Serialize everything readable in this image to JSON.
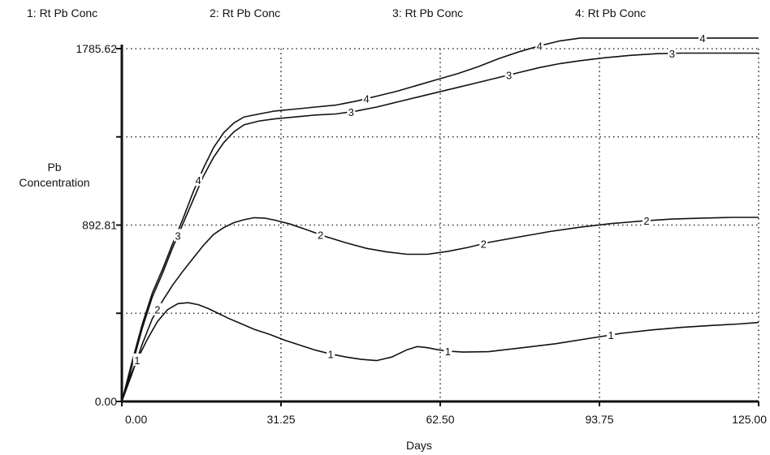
{
  "chart_data": {
    "type": "line",
    "xlabel": "Days",
    "ylabel_lines": [
      "Pb",
      "Concentration"
    ],
    "x_ticks": [
      "0.00",
      "31.25",
      "62.50",
      "93.75",
      "125.00"
    ],
    "y_ticks": [
      "0.00",
      "892.81",
      "1785.62"
    ],
    "xlim": [
      0,
      125
    ],
    "ylim": [
      0,
      1785.62
    ],
    "grid": true,
    "series": [
      {
        "name": "1: Rt Pb Conc",
        "marker": "1",
        "x": [
          0,
          1.5,
          3,
          5,
          7,
          9,
          11,
          13,
          15,
          17,
          19,
          21,
          23,
          26,
          29,
          32,
          35,
          38,
          41,
          44,
          47,
          50,
          53,
          56,
          58,
          60,
          62,
          64,
          67,
          72,
          78,
          85,
          92,
          98,
          104,
          110,
          116,
          121,
          125
        ],
        "y": [
          0,
          120,
          210,
          315,
          405,
          465,
          495,
          500,
          490,
          470,
          445,
          420,
          398,
          365,
          340,
          310,
          285,
          260,
          240,
          225,
          213,
          207,
          225,
          262,
          278,
          272,
          262,
          255,
          250,
          252,
          270,
          292,
          320,
          345,
          362,
          375,
          385,
          392,
          400
        ]
      },
      {
        "name": "2: Rt Pb Conc",
        "marker": "2",
        "x": [
          0,
          2,
          4,
          6,
          8,
          10,
          12,
          14,
          16,
          18,
          20,
          22,
          24,
          26,
          28,
          30,
          33,
          36,
          40,
          44,
          48,
          52,
          56,
          60,
          64,
          68,
          72,
          78,
          84,
          90,
          96,
          102,
          108,
          114,
          120,
          125
        ],
        "y": [
          0,
          140,
          290,
          420,
          510,
          590,
          660,
          725,
          790,
          845,
          880,
          905,
          920,
          930,
          928,
          918,
          898,
          872,
          835,
          803,
          775,
          757,
          745,
          745,
          760,
          780,
          805,
          833,
          860,
          882,
          900,
          913,
          923,
          928,
          932,
          932
        ]
      },
      {
        "name": "3: Rt Pb Conc",
        "marker": "3",
        "x": [
          0,
          2,
          4,
          6,
          8,
          10,
          12,
          14,
          16,
          18,
          20,
          22,
          24,
          27,
          30,
          34,
          38,
          42,
          46,
          50,
          54,
          58,
          62,
          66,
          70,
          74,
          78,
          82,
          86,
          90,
          95,
          100,
          105,
          110,
          115,
          120,
          125
        ],
        "y": [
          0,
          180,
          370,
          530,
          650,
          780,
          900,
          1020,
          1140,
          1235,
          1310,
          1365,
          1400,
          1420,
          1430,
          1440,
          1450,
          1455,
          1470,
          1490,
          1515,
          1540,
          1565,
          1590,
          1615,
          1640,
          1665,
          1690,
          1710,
          1725,
          1740,
          1752,
          1760,
          1763,
          1763,
          1763,
          1763
        ]
      },
      {
        "name": "4: Rt Pb Conc",
        "marker": "4",
        "x": [
          0,
          2,
          4,
          6,
          8,
          10,
          12,
          14,
          16,
          18,
          20,
          22,
          24,
          27,
          30,
          34,
          38,
          42,
          46,
          50,
          54,
          58,
          62,
          66,
          70,
          74,
          78,
          82,
          86,
          90,
          95,
          100,
          105,
          110,
          115,
          120,
          125
        ],
        "y": [
          0,
          200,
          390,
          550,
          670,
          800,
          925,
          1060,
          1180,
          1285,
          1360,
          1410,
          1440,
          1455,
          1470,
          1480,
          1490,
          1500,
          1520,
          1545,
          1570,
          1600,
          1630,
          1660,
          1695,
          1735,
          1770,
          1800,
          1825,
          1845,
          1860,
          1870,
          1875,
          1880,
          1880,
          1880,
          1878
        ]
      }
    ]
  },
  "colors": {
    "line": "#111111",
    "grid": "#333333",
    "background": "#ffffff"
  },
  "icons": {
    "series_marker": "numeric-label"
  }
}
